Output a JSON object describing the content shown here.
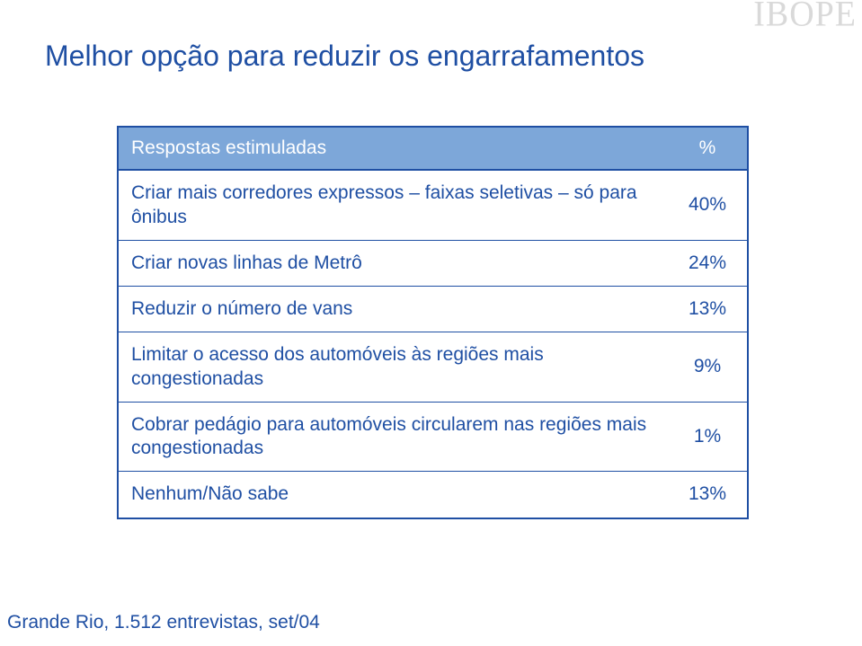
{
  "watermark": "IBOPE",
  "title": "Melhor opção para reduzir os engarrafamentos",
  "table": {
    "header": {
      "label_col": "Respostas  estimuladas",
      "pct_col": "%"
    },
    "rows": [
      {
        "label": "Criar mais corredores expressos – faixas seletivas – só para ônibus",
        "pct": "40%"
      },
      {
        "label": "Criar novas linhas de Metrô",
        "pct": "24%"
      },
      {
        "label": "Reduzir o número de vans",
        "pct": "13%"
      },
      {
        "label": "Limitar o acesso dos automóveis às regiões mais congestionadas",
        "pct": "9%"
      },
      {
        "label": "Cobrar pedágio para automóveis circularem nas regiões mais congestionadas",
        "pct": "1%"
      },
      {
        "label": "Nenhum/Não sabe",
        "pct": "13%"
      }
    ]
  },
  "footer": "Grande Rio, 1.512 entrevistas, set/04",
  "colors": {
    "brand_blue": "#1f4fa3",
    "header_fill": "#7da7d9",
    "watermark_gray": "#d9d9d9",
    "background": "#ffffff"
  }
}
